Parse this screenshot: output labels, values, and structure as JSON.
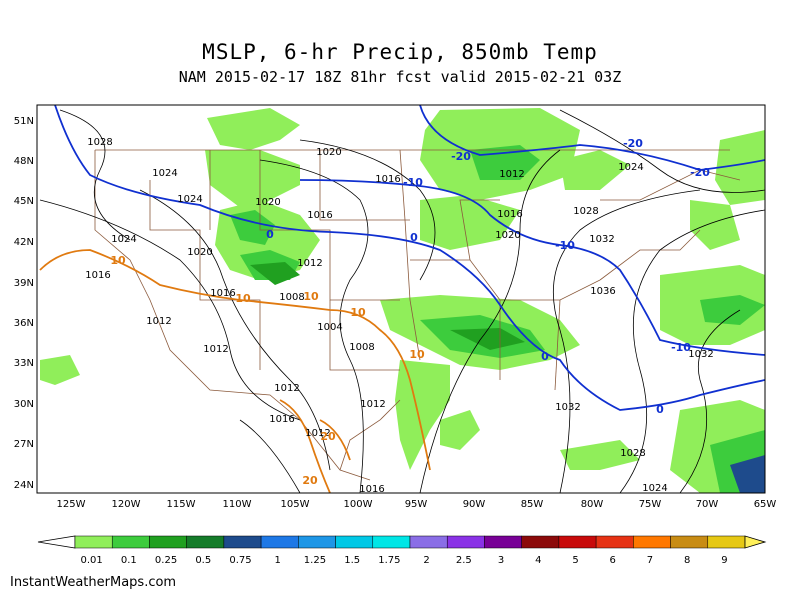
{
  "title": "MSLP, 6-hr Precip, 850mb Temp",
  "subtitle": "NAM 2015-02-17 18Z 81hr fcst valid 2015-02-21 03Z",
  "credit": "InstantWeatherMaps.com",
  "lat_labels": [
    "51N",
    "48N",
    "45N",
    "42N",
    "39N",
    "36N",
    "33N",
    "30N",
    "27N",
    "24N"
  ],
  "lon_labels": [
    "125W",
    "120W",
    "115W",
    "110W",
    "105W",
    "100W",
    "95W",
    "90W",
    "85W",
    "80W",
    "75W",
    "70W",
    "65W"
  ],
  "colorbar": {
    "labels": [
      "0.01",
      "0.1",
      "0.25",
      "0.5",
      "0.75",
      "1",
      "1.25",
      "1.5",
      "1.75",
      "2",
      "2.5",
      "3",
      "4",
      "5",
      "6",
      "7",
      "8",
      "9"
    ],
    "colors": [
      "#90ee5a",
      "#3dcc3d",
      "#20a020",
      "#157c2a",
      "#1e4b8c",
      "#1e78e6",
      "#1e96e6",
      "#00c8e6",
      "#00e6e6",
      "#8a6ee6",
      "#8a32e6",
      "#780096",
      "#8c0a0a",
      "#c80a0a",
      "#e63214",
      "#ff7800",
      "#c88c14",
      "#e6c814",
      "#ffe600",
      "#fff05a"
    ]
  },
  "pressure_labels": [
    "1028",
    "1024",
    "1024",
    "1024",
    "1020",
    "1020",
    "1020",
    "1016",
    "1016",
    "1016",
    "1016",
    "1012",
    "1012",
    "1012",
    "1012",
    "1012",
    "1012",
    "1008",
    "1004",
    "1008",
    "1016",
    "1012",
    "1020",
    "1016",
    "1028",
    "1032",
    "1036",
    "1032",
    "1032",
    "1028",
    "1024",
    "1024",
    "1016"
  ],
  "temp_labels": [
    "-20",
    "-20",
    "-20",
    "-10",
    "-10",
    "-10",
    "0",
    "0",
    "0",
    "0",
    "10",
    "10",
    "10",
    "10",
    "10",
    "20",
    "20"
  ]
}
